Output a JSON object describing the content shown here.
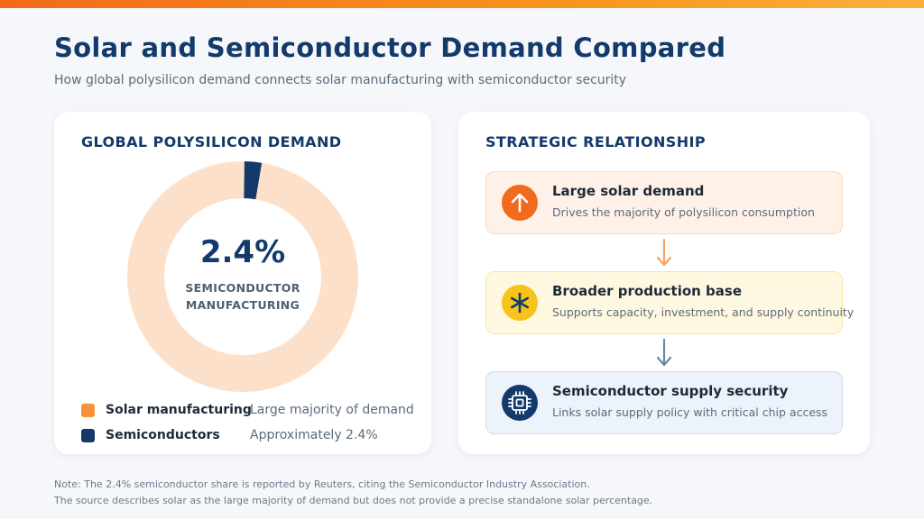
{
  "title": "Solar and Semiconductor Demand Compared",
  "subtitle": "How global polysilicon demand connects solar manufacturing with semiconductor security",
  "left_card": {
    "heading": "GLOBAL POLYSILICON DEMAND",
    "center_value": "2.4%",
    "center_label_line1": "SEMICONDUCTOR",
    "center_label_line2": "MANUFACTURING",
    "legend": [
      {
        "name": "Solar manufacturing",
        "desc": "Large majority of demand",
        "color": "#f7923a"
      },
      {
        "name": "Semiconductors",
        "desc": "Approximately 2.4%",
        "color": "#133a6b"
      }
    ]
  },
  "chart_data": {
    "type": "pie",
    "title": "GLOBAL POLYSILICON DEMAND",
    "variant": "donut",
    "series": [
      {
        "name": "Solar manufacturing",
        "value": 97.6,
        "color": "#fde0c9"
      },
      {
        "name": "Semiconductors",
        "value": 2.4,
        "color": "#133a6b"
      }
    ]
  },
  "right_card": {
    "heading": "STRATEGIC RELATIONSHIP",
    "steps": [
      {
        "title": "Large solar demand",
        "desc": "Drives the majority of polysilicon consumption",
        "icon": "arrow-up-icon",
        "bg": "#fff1e8",
        "border": "#fbd8bf",
        "icon_bg": "#f26a1b"
      },
      {
        "title": "Broader production base",
        "desc": "Supports capacity, investment, and supply continuity",
        "icon": "asterisk-icon",
        "bg": "#fff8e0",
        "border": "#f8e6a6",
        "icon_bg": "#f7c21a"
      },
      {
        "title": "Semiconductor supply security",
        "desc": "Links solar supply policy with critical chip access",
        "icon": "chip-icon",
        "bg": "#edf3fb",
        "border": "#cfdcee",
        "icon_bg": "#133a6b"
      }
    ],
    "arrow_colors": [
      "#f7a262",
      "#6b86a6"
    ]
  },
  "notes": [
    "Note: The 2.4% semiconductor share is reported by Reuters, citing the Semiconductor Industry Association.",
    "The source describes solar as the large majority of demand but does not provide a precise standalone solar percentage."
  ]
}
